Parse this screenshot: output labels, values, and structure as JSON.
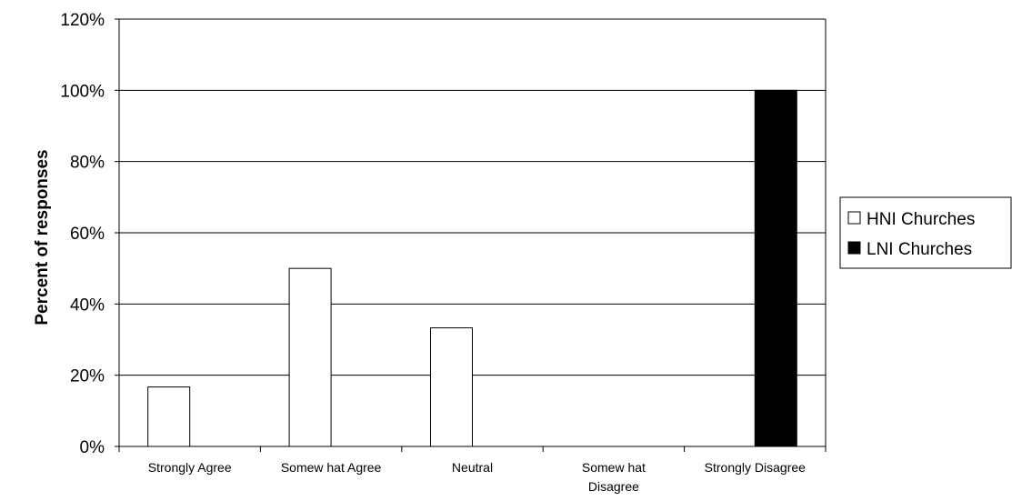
{
  "chart_data": {
    "type": "bar",
    "categories": [
      [
        "Strongly Agree"
      ],
      [
        "Somew hat Agree"
      ],
      [
        "Neutral"
      ],
      [
        "Somew hat",
        "Disagree"
      ],
      [
        "Strongly Disagree"
      ]
    ],
    "series": [
      {
        "name": "HNI Churches",
        "values": [
          16.7,
          50,
          33.3,
          0,
          0
        ],
        "color": "#ffffff"
      },
      {
        "name": "LNI Churches",
        "values": [
          0,
          0,
          0,
          0,
          100
        ],
        "color": "#000000"
      }
    ],
    "ylabel": "Percent of responses",
    "xlabel": "",
    "ylim": [
      0,
      120
    ],
    "yticks": [
      0,
      20,
      40,
      60,
      80,
      100,
      120
    ],
    "ytick_suffix": "%",
    "grid": true,
    "legend_position": "right"
  }
}
